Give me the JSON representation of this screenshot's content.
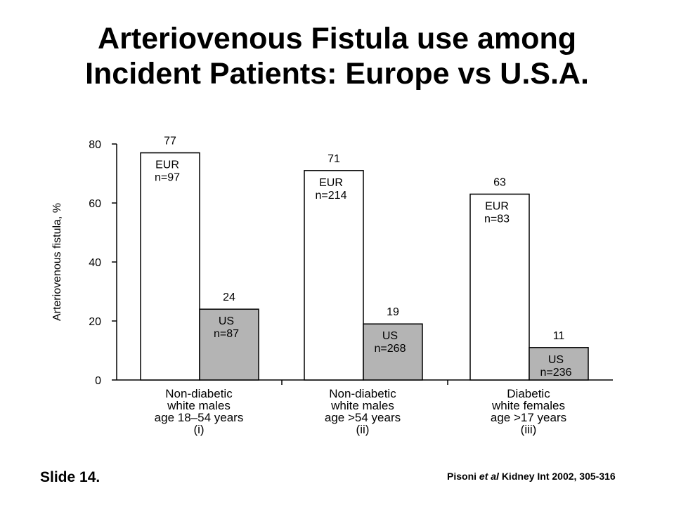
{
  "slide": {
    "title_line1": "Arteriovenous Fistula use among",
    "title_line2": "Incident Patients: Europe vs U.S.A.",
    "footer_label": "Slide 14.",
    "citation_author": "Pisoni",
    "citation_etal": "et al",
    "citation_rest": "Kidney Int 2002, 305-316"
  },
  "chart_data": {
    "type": "bar",
    "ylabel": "Arteriovenous fistula, %",
    "ylim": [
      0,
      80
    ],
    "yticks": [
      0,
      20,
      40,
      60,
      80
    ],
    "grid": false,
    "categories": [
      [
        "Non-diabetic",
        "white males",
        "age 18–54 years",
        "(i)"
      ],
      [
        "Non-diabetic",
        "white males",
        "age >54 years",
        "(ii)"
      ],
      [
        "Diabetic",
        "white females",
        "age >17 years",
        "(iii)"
      ]
    ],
    "series": [
      {
        "name": "EUR",
        "values": [
          77,
          71,
          63
        ],
        "n_labels": [
          "n=97",
          "n=214",
          "n=83"
        ],
        "color": "#ffffff"
      },
      {
        "name": "US",
        "values": [
          24,
          19,
          11
        ],
        "n_labels": [
          "n=87",
          "n=268",
          "n=236"
        ],
        "color": "#b4b4b4"
      }
    ]
  }
}
